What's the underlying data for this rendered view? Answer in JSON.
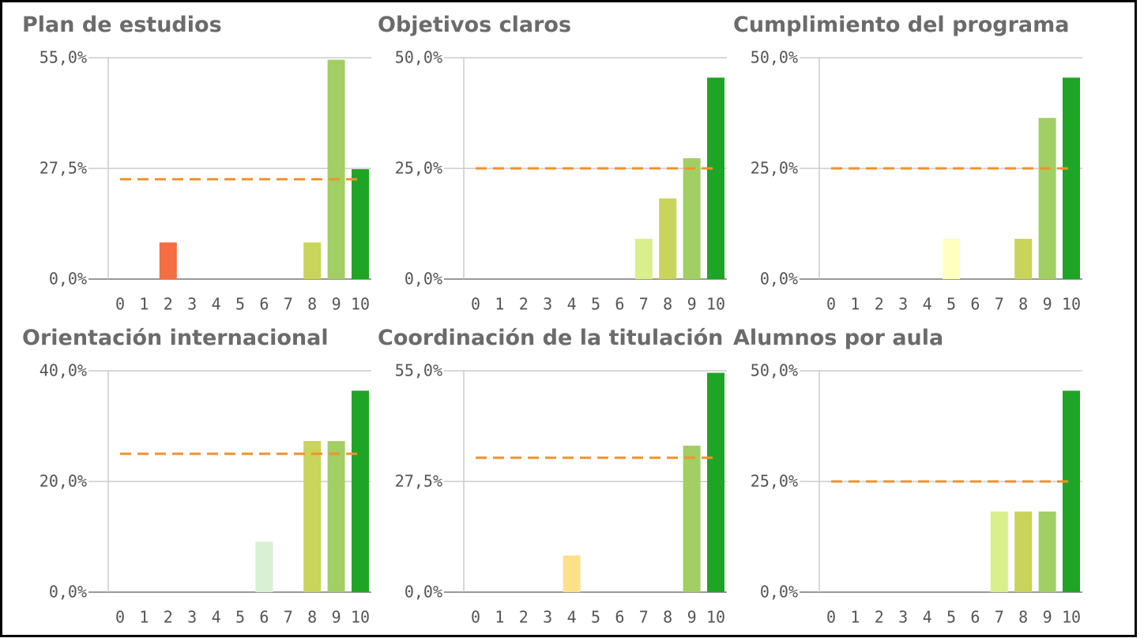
{
  "chart_data": [
    {
      "type": "bar",
      "title": "Plan de estudios",
      "categories": [
        "0",
        "1",
        "2",
        "3",
        "4",
        "5",
        "6",
        "7",
        "8",
        "9",
        "10"
      ],
      "values": [
        0,
        0,
        9.1,
        0,
        0,
        0,
        0,
        0,
        9.1,
        54.5,
        27.3
      ],
      "colors": [
        "#a50026",
        "#d73027",
        "#f46d43",
        "#fdae61",
        "#fee08b",
        "#ffffbf",
        "#d9f0d3",
        "#d9ef8b",
        "#c8d45a",
        "#a1cf63",
        "#1fa526"
      ],
      "ylim": [
        0,
        55
      ],
      "yticks": [
        {
          "value": 0,
          "label": "0,0%"
        },
        {
          "value": 27.5,
          "label": "27,5%"
        },
        {
          "value": 55,
          "label": "55,0%"
        }
      ],
      "reference_line": 24.8,
      "reference_color": "#f0922b",
      "grid": true
    },
    {
      "type": "bar",
      "title": "Objetivos claros",
      "categories": [
        "0",
        "1",
        "2",
        "3",
        "4",
        "5",
        "6",
        "7",
        "8",
        "9",
        "10"
      ],
      "values": [
        0,
        0,
        0,
        0,
        0,
        0,
        0,
        9.1,
        18.2,
        27.3,
        45.5
      ],
      "colors": [
        "#a50026",
        "#d73027",
        "#f46d43",
        "#fdae61",
        "#fee08b",
        "#ffffbf",
        "#d9f0d3",
        "#d9ef8b",
        "#c8d45a",
        "#a1cf63",
        "#1fa526"
      ],
      "ylim": [
        0,
        50
      ],
      "yticks": [
        {
          "value": 0,
          "label": "0,0%"
        },
        {
          "value": 25,
          "label": "25,0%"
        },
        {
          "value": 50,
          "label": "50,0%"
        }
      ],
      "reference_line": 25,
      "reference_color": "#f0922b",
      "grid": true
    },
    {
      "type": "bar",
      "title": "Cumplimiento del programa",
      "categories": [
        "0",
        "1",
        "2",
        "3",
        "4",
        "5",
        "6",
        "7",
        "8",
        "9",
        "10"
      ],
      "values": [
        0,
        0,
        0,
        0,
        0,
        9.1,
        0,
        0,
        9.1,
        36.4,
        45.5
      ],
      "colors": [
        "#a50026",
        "#d73027",
        "#f46d43",
        "#fdae61",
        "#fee08b",
        "#ffffbf",
        "#d9f0d3",
        "#d9ef8b",
        "#c8d45a",
        "#a1cf63",
        "#1fa526"
      ],
      "ylim": [
        0,
        50
      ],
      "yticks": [
        {
          "value": 0,
          "label": "0,0%"
        },
        {
          "value": 25,
          "label": "25,0%"
        },
        {
          "value": 50,
          "label": "50,0%"
        }
      ],
      "reference_line": 25,
      "reference_color": "#f0922b",
      "grid": true
    },
    {
      "type": "bar",
      "title": "Orientación internacional",
      "categories": [
        "0",
        "1",
        "2",
        "3",
        "4",
        "5",
        "6",
        "7",
        "8",
        "9",
        "10"
      ],
      "values": [
        0,
        0,
        0,
        0,
        0,
        0,
        9.1,
        0,
        27.3,
        27.3,
        36.4
      ],
      "colors": [
        "#a50026",
        "#d73027",
        "#f46d43",
        "#fdae61",
        "#fee08b",
        "#ffffbf",
        "#d9f0d3",
        "#d9ef8b",
        "#c8d45a",
        "#a1cf63",
        "#1fa526"
      ],
      "ylim": [
        0,
        40
      ],
      "yticks": [
        {
          "value": 0,
          "label": "0,0%"
        },
        {
          "value": 20,
          "label": "20,0%"
        },
        {
          "value": 40,
          "label": "40,0%"
        }
      ],
      "reference_line": 25,
      "reference_color": "#f0922b",
      "grid": true
    },
    {
      "type": "bar",
      "title": "Coordinación de la titulación",
      "categories": [
        "0",
        "1",
        "2",
        "3",
        "4",
        "5",
        "6",
        "7",
        "8",
        "9",
        "10"
      ],
      "values": [
        0,
        0,
        0,
        0,
        9.1,
        0,
        0,
        0,
        0,
        36.4,
        54.5
      ],
      "colors": [
        "#a50026",
        "#d73027",
        "#f46d43",
        "#fdae61",
        "#fee08b",
        "#ffffbf",
        "#d9f0d3",
        "#d9ef8b",
        "#c8d45a",
        "#a1cf63",
        "#1fa526"
      ],
      "ylim": [
        0,
        55
      ],
      "yticks": [
        {
          "value": 0,
          "label": "0,0%"
        },
        {
          "value": 27.5,
          "label": "27,5%"
        },
        {
          "value": 55,
          "label": "55,0%"
        }
      ],
      "reference_line": 33.4,
      "reference_color": "#f0922b",
      "grid": true
    },
    {
      "type": "bar",
      "title": "Alumnos por aula",
      "categories": [
        "0",
        "1",
        "2",
        "3",
        "4",
        "5",
        "6",
        "7",
        "8",
        "9",
        "10"
      ],
      "values": [
        0,
        0,
        0,
        0,
        0,
        0,
        0,
        18.2,
        18.2,
        18.2,
        45.5
      ],
      "colors": [
        "#a50026",
        "#d73027",
        "#f46d43",
        "#fdae61",
        "#fee08b",
        "#ffffbf",
        "#d9f0d3",
        "#d9ef8b",
        "#c8d45a",
        "#a1cf63",
        "#1fa526"
      ],
      "ylim": [
        0,
        50
      ],
      "yticks": [
        {
          "value": 0,
          "label": "0,0%"
        },
        {
          "value": 25,
          "label": "25,0%"
        },
        {
          "value": 50,
          "label": "50,0%"
        }
      ],
      "reference_line": 25,
      "reference_color": "#f0922b",
      "grid": true
    }
  ]
}
